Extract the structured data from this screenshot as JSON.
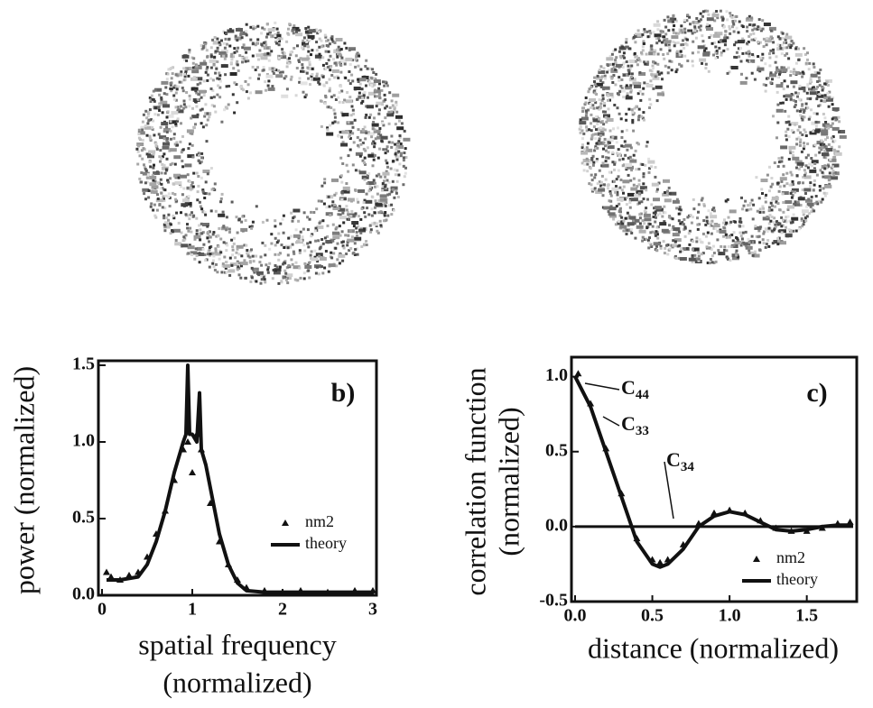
{
  "chart_data": [
    {
      "type": "line",
      "label": "b)",
      "x_title": [
        "spatial frequency",
        "(normalized)"
      ],
      "y_title": [
        "power (normalized)"
      ],
      "xlim": [
        0,
        3
      ],
      "ylim": [
        0,
        1.5
      ],
      "xticks": [
        0,
        1,
        2,
        3
      ],
      "yticks": [
        {
          "value": 0,
          "label": "0.0"
        },
        0.5,
        {
          "value": 1,
          "label": "1.0"
        },
        1.5
      ],
      "legend": "lower right",
      "series": [
        {
          "name": "nm2",
          "color": "#111111",
          "style": "markers",
          "x": [
            0.05,
            0.1,
            0.2,
            0.3,
            0.4,
            0.5,
            0.6,
            0.7,
            0.8,
            0.9,
            0.95,
            1.0,
            1.05,
            1.1,
            1.2,
            1.3,
            1.4,
            1.5,
            1.6,
            1.8,
            2.0,
            2.2,
            2.5,
            2.8,
            3.0
          ],
          "values": [
            0.15,
            0.12,
            0.1,
            0.13,
            0.15,
            0.25,
            0.4,
            0.55,
            0.75,
            0.95,
            1.0,
            0.8,
            1.05,
            0.95,
            0.6,
            0.35,
            0.2,
            0.1,
            0.05,
            0.03,
            0.02,
            0.03,
            0.02,
            0.03,
            0.03
          ]
        },
        {
          "name": "theory",
          "color": "#111111",
          "style": "line",
          "x": [
            0.05,
            0.2,
            0.4,
            0.5,
            0.6,
            0.7,
            0.8,
            0.85,
            0.9,
            0.93,
            0.95,
            0.97,
            1.0,
            1.05,
            1.08,
            1.1,
            1.15,
            1.2,
            1.3,
            1.4,
            1.5,
            1.6,
            1.8,
            2.0,
            2.5,
            3.0
          ],
          "values": [
            0.1,
            0.1,
            0.12,
            0.2,
            0.35,
            0.55,
            0.8,
            0.9,
            1.0,
            1.05,
            1.5,
            1.05,
            1.05,
            1.0,
            1.32,
            0.95,
            0.85,
            0.7,
            0.4,
            0.2,
            0.08,
            0.03,
            0.02,
            0.02,
            0.02,
            0.02
          ]
        }
      ]
    },
    {
      "type": "line",
      "label": "c)",
      "x_title": [
        "distance (normalized)"
      ],
      "y_title": [
        "correlation function",
        "(normalized)"
      ],
      "xlim": [
        0,
        1.8
      ],
      "ylim": [
        -0.5,
        1.1
      ],
      "xticks": [
        {
          "value": 0,
          "label": "0.0"
        },
        0.5,
        {
          "value": 1,
          "label": "1.0"
        },
        1.5
      ],
      "yticks": [
        -0.5,
        {
          "value": 0,
          "label": "0.0"
        },
        0.5,
        {
          "value": 1,
          "label": "1.0"
        }
      ],
      "zero_line": true,
      "legend": "lower right",
      "annotations": [
        {
          "text": "C",
          "sub": "44"
        },
        {
          "text": "C",
          "sub": "33"
        },
        {
          "text": "C",
          "sub": "34"
        }
      ],
      "series": [
        {
          "name": "nm2",
          "color": "#111111",
          "style": "markers",
          "x": [
            0.02,
            0.1,
            0.2,
            0.3,
            0.4,
            0.5,
            0.55,
            0.6,
            0.7,
            0.8,
            0.9,
            1.0,
            1.1,
            1.2,
            1.3,
            1.4,
            1.5,
            1.6,
            1.7,
            1.78
          ],
          "values": [
            1.02,
            0.82,
            0.52,
            0.22,
            -0.08,
            -0.22,
            -0.24,
            -0.22,
            -0.12,
            0.02,
            0.09,
            0.11,
            0.09,
            0.04,
            -0.01,
            -0.03,
            -0.03,
            -0.01,
            0.02,
            0.03
          ]
        },
        {
          "name": "theory",
          "color": "#111111",
          "style": "line",
          "x": [
            0,
            0.1,
            0.2,
            0.3,
            0.4,
            0.5,
            0.55,
            0.6,
            0.7,
            0.8,
            0.9,
            1.0,
            1.1,
            1.2,
            1.3,
            1.4,
            1.5,
            1.6,
            1.7,
            1.8
          ],
          "values": [
            1.0,
            0.8,
            0.5,
            0.2,
            -0.1,
            -0.25,
            -0.27,
            -0.25,
            -0.15,
            0.0,
            0.07,
            0.1,
            0.08,
            0.03,
            -0.02,
            -0.03,
            -0.02,
            0.0,
            0.01,
            0.01
          ]
        }
      ]
    }
  ]
}
